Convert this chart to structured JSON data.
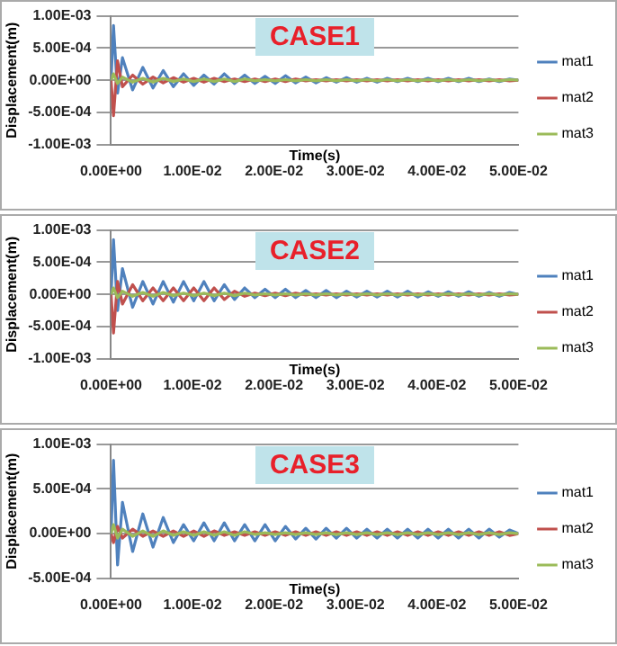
{
  "chart_data": [
    {
      "type": "line",
      "title": "CASE1",
      "xlabel": "Time(s)",
      "ylabel": "Displacement(m)",
      "x": [
        0,
        0.0003,
        0.0008,
        0.0014,
        0.00265,
        0.0039,
        0.00515,
        0.0064,
        0.00765,
        0.0089,
        0.01015,
        0.0114,
        0.01265,
        0.0139,
        0.01515,
        0.0164,
        0.01765,
        0.0189,
        0.02015,
        0.0214,
        0.02265,
        0.0239,
        0.02515,
        0.0264,
        0.02765,
        0.0289,
        0.03015,
        0.0314,
        0.03265,
        0.0339,
        0.03515,
        0.0364,
        0.03765,
        0.0389,
        0.04015,
        0.0414,
        0.04265,
        0.0439,
        0.04515,
        0.0464,
        0.04765,
        0.0489,
        0.05
      ],
      "series": [
        {
          "name": "mat1",
          "color": "#4f81bd",
          "values": [
            0,
            0.00085,
            -0.0002,
            0.00035,
            -0.00015,
            0.0002,
            -0.00012,
            0.00015,
            -0.0001,
            0.0001,
            -8e-05,
            8e-05,
            -6e-05,
            0.0001,
            -5e-05,
            8e-05,
            -5e-05,
            6e-05,
            -5e-05,
            7e-05,
            -4e-05,
            5e-05,
            -4e-05,
            4e-05,
            -3e-05,
            4e-05,
            -3e-05,
            3e-05,
            -3e-05,
            3e-05,
            -2e-05,
            3e-05,
            -2e-05,
            3e-05,
            -2e-05,
            3e-05,
            -2e-05,
            3e-05,
            -2e-05,
            2e-05,
            -2e-05,
            2e-05,
            0
          ]
        },
        {
          "name": "mat2",
          "color": "#c0504d",
          "values": [
            0,
            -0.00055,
            0.0003,
            -0.0001,
            8e-05,
            -6e-05,
            5e-05,
            -4e-05,
            4e-05,
            -3e-05,
            3e-05,
            -3e-05,
            3e-05,
            -2e-05,
            2e-05,
            -2e-05,
            2e-05,
            -2e-05,
            2e-05,
            -2e-05,
            2e-05,
            -1e-05,
            1e-05,
            -1e-05,
            1e-05,
            -1e-05,
            1e-05,
            -1e-05,
            1e-05,
            -1e-05,
            1e-05,
            -1e-05,
            1e-05,
            -1e-05,
            1e-05,
            -1e-05,
            1e-05,
            -1e-05,
            1e-05,
            -1e-05,
            1e-05,
            -1e-05,
            0
          ]
        },
        {
          "name": "mat3",
          "color": "#9bbb59",
          "values": [
            0,
            0.0001,
            -5e-05,
            5e-05,
            -3e-05,
            3e-05,
            -3e-05,
            3e-05,
            -2e-05,
            2e-05,
            -2e-05,
            2e-05,
            -2e-05,
            2e-05,
            -2e-05,
            2e-05,
            -1e-05,
            1e-05,
            -1e-05,
            1e-05,
            -1e-05,
            1e-05,
            -1e-05,
            1e-05,
            -1e-05,
            1e-05,
            -1e-05,
            1e-05,
            -1e-05,
            1e-05,
            -1e-05,
            1e-05,
            -1e-05,
            1e-05,
            -1e-05,
            1e-05,
            -1e-05,
            1e-05,
            -1e-05,
            1e-05,
            -1e-05,
            1e-05,
            0
          ]
        }
      ],
      "xlim": [
        0,
        0.05
      ],
      "xticks": [
        {
          "value": 0,
          "label": "0.00E+00"
        },
        {
          "value": 0.01,
          "label": "1.00E-02"
        },
        {
          "value": 0.02,
          "label": "2.00E-02"
        },
        {
          "value": 0.03,
          "label": "3.00E-02"
        },
        {
          "value": 0.04,
          "label": "4.00E-02"
        },
        {
          "value": 0.05,
          "label": "5.00E-02"
        }
      ],
      "ylim": [
        -0.001,
        0.001
      ],
      "yticks": [
        {
          "value": -0.001,
          "label": "-1.00E-03"
        },
        {
          "value": -0.0005,
          "label": "-5.00E-04"
        },
        {
          "value": 0,
          "label": "0.00E+00"
        },
        {
          "value": 0.0005,
          "label": "5.00E-04"
        },
        {
          "value": 0.001,
          "label": "1.00E-03"
        }
      ],
      "grid": "y",
      "legend": "right",
      "marker": "none"
    },
    {
      "type": "line",
      "title": "CASE2",
      "xlabel": "Time(s)",
      "ylabel": "Displacement(m)",
      "x": [
        0,
        0.0003,
        0.0008,
        0.0014,
        0.00265,
        0.0039,
        0.00515,
        0.0064,
        0.00765,
        0.0089,
        0.01015,
        0.0114,
        0.01265,
        0.0139,
        0.01515,
        0.0164,
        0.01765,
        0.0189,
        0.02015,
        0.0214,
        0.02265,
        0.0239,
        0.02515,
        0.0264,
        0.02765,
        0.0289,
        0.03015,
        0.0314,
        0.03265,
        0.0339,
        0.03515,
        0.0364,
        0.03765,
        0.0389,
        0.04015,
        0.0414,
        0.04265,
        0.0439,
        0.04515,
        0.0464,
        0.04765,
        0.0489,
        0.05
      ],
      "series": [
        {
          "name": "mat1",
          "color": "#4f81bd",
          "values": [
            0,
            0.00085,
            -0.00025,
            0.0004,
            -0.0002,
            0.0002,
            -0.00015,
            0.0002,
            -0.00012,
            0.0002,
            -0.0001,
            0.0002,
            -0.0001,
            0.00015,
            -8e-05,
            0.0001,
            -5e-05,
            8e-05,
            -5e-05,
            8e-05,
            -5e-05,
            6e-05,
            -5e-05,
            6e-05,
            -5e-05,
            5e-05,
            -4e-05,
            5e-05,
            -4e-05,
            5e-05,
            -4e-05,
            5e-05,
            -4e-05,
            4e-05,
            -3e-05,
            4e-05,
            -3e-05,
            4e-05,
            -3e-05,
            3e-05,
            -3e-05,
            3e-05,
            0
          ]
        },
        {
          "name": "mat2",
          "color": "#c0504d",
          "values": [
            0,
            -0.0006,
            0.0002,
            -0.00015,
            0.00015,
            -0.0001,
            0.0001,
            -0.0001,
            0.0001,
            -0.0001,
            0.0001,
            -0.0001,
            0.0001,
            -8e-05,
            5e-05,
            -3e-05,
            2e-05,
            -2e-05,
            2e-05,
            -2e-05,
            2e-05,
            -1e-05,
            1e-05,
            -1e-05,
            1e-05,
            -1e-05,
            1e-05,
            -1e-05,
            1e-05,
            -1e-05,
            1e-05,
            -1e-05,
            1e-05,
            -1e-05,
            1e-05,
            -1e-05,
            1e-05,
            -1e-05,
            1e-05,
            -1e-05,
            1e-05,
            -1e-05,
            0
          ]
        },
        {
          "name": "mat3",
          "color": "#9bbb59",
          "values": [
            0,
            0.0001,
            -5e-05,
            5e-05,
            -3e-05,
            3e-05,
            -3e-05,
            3e-05,
            -2e-05,
            2e-05,
            -2e-05,
            2e-05,
            -2e-05,
            2e-05,
            -2e-05,
            2e-05,
            -1e-05,
            1e-05,
            -1e-05,
            1e-05,
            -1e-05,
            1e-05,
            -1e-05,
            1e-05,
            -1e-05,
            1e-05,
            -1e-05,
            1e-05,
            -1e-05,
            1e-05,
            -1e-05,
            1e-05,
            -1e-05,
            1e-05,
            -1e-05,
            1e-05,
            -1e-05,
            1e-05,
            -1e-05,
            1e-05,
            -1e-05,
            1e-05,
            0
          ]
        }
      ],
      "xlim": [
        0,
        0.05
      ],
      "xticks": [
        {
          "value": 0,
          "label": "0.00E+00"
        },
        {
          "value": 0.01,
          "label": "1.00E-02"
        },
        {
          "value": 0.02,
          "label": "2.00E-02"
        },
        {
          "value": 0.03,
          "label": "3.00E-02"
        },
        {
          "value": 0.04,
          "label": "4.00E-02"
        },
        {
          "value": 0.05,
          "label": "5.00E-02"
        }
      ],
      "ylim": [
        -0.001,
        0.001
      ],
      "yticks": [
        {
          "value": -0.001,
          "label": "-1.00E-03"
        },
        {
          "value": -0.0005,
          "label": "-5.00E-04"
        },
        {
          "value": 0,
          "label": "0.00E+00"
        },
        {
          "value": 0.0005,
          "label": "5.00E-04"
        },
        {
          "value": 0.001,
          "label": "1.00E-03"
        }
      ],
      "grid": "y",
      "legend": "right",
      "marker": "none"
    },
    {
      "type": "line",
      "title": "CASE3",
      "xlabel": "Time(s)",
      "ylabel": "Displacement(m)",
      "x": [
        0,
        0.0003,
        0.0008,
        0.0014,
        0.00265,
        0.0039,
        0.00515,
        0.0064,
        0.00765,
        0.0089,
        0.01015,
        0.0114,
        0.01265,
        0.0139,
        0.01515,
        0.0164,
        0.01765,
        0.0189,
        0.02015,
        0.0214,
        0.02265,
        0.0239,
        0.02515,
        0.0264,
        0.02765,
        0.0289,
        0.03015,
        0.0314,
        0.03265,
        0.0339,
        0.03515,
        0.0364,
        0.03765,
        0.0389,
        0.04015,
        0.0414,
        0.04265,
        0.0439,
        0.04515,
        0.0464,
        0.04765,
        0.0489,
        0.05
      ],
      "series": [
        {
          "name": "mat1",
          "color": "#4f81bd",
          "values": [
            0,
            0.00082,
            -0.00035,
            0.00035,
            -0.0002,
            0.00022,
            -0.00015,
            0.00018,
            -0.0001,
            0.0001,
            -8e-05,
            0.00012,
            -8e-05,
            0.00012,
            -8e-05,
            0.0001,
            -8e-05,
            0.0001,
            -8e-05,
            8e-05,
            -6e-05,
            6e-05,
            -6e-05,
            6e-05,
            -5e-05,
            6e-05,
            -5e-05,
            5e-05,
            -5e-05,
            5e-05,
            -5e-05,
            5e-05,
            -5e-05,
            5e-05,
            -5e-05,
            5e-05,
            -5e-05,
            5e-05,
            -5e-05,
            5e-05,
            -4e-05,
            4e-05,
            0
          ]
        },
        {
          "name": "mat2",
          "color": "#c0504d",
          "values": [
            0,
            -0.0001,
            8e-05,
            -5e-05,
            5e-05,
            -3e-05,
            3e-05,
            -3e-05,
            3e-05,
            -3e-05,
            3e-05,
            -3e-05,
            3e-05,
            -2e-05,
            2e-05,
            -2e-05,
            2e-05,
            -2e-05,
            2e-05,
            -2e-05,
            2e-05,
            -2e-05,
            2e-05,
            -2e-05,
            2e-05,
            -2e-05,
            2e-05,
            -2e-05,
            2e-05,
            -2e-05,
            2e-05,
            -2e-05,
            2e-05,
            -2e-05,
            2e-05,
            -2e-05,
            2e-05,
            -2e-05,
            2e-05,
            -2e-05,
            2e-05,
            -2e-05,
            0
          ]
        },
        {
          "name": "mat3",
          "color": "#9bbb59",
          "values": [
            0,
            0.0001,
            -5e-05,
            5e-05,
            -3e-05,
            3e-05,
            -3e-05,
            3e-05,
            -2e-05,
            2e-05,
            -2e-05,
            2e-05,
            -2e-05,
            2e-05,
            -2e-05,
            2e-05,
            -1e-05,
            1e-05,
            -1e-05,
            1e-05,
            -1e-05,
            1e-05,
            -1e-05,
            1e-05,
            -1e-05,
            1e-05,
            -1e-05,
            1e-05,
            -1e-05,
            1e-05,
            -1e-05,
            1e-05,
            -1e-05,
            1e-05,
            -1e-05,
            1e-05,
            -1e-05,
            1e-05,
            -1e-05,
            1e-05,
            -1e-05,
            1e-05,
            0
          ]
        }
      ],
      "xlim": [
        0,
        0.05
      ],
      "xticks": [
        {
          "value": 0,
          "label": "0.00E+00"
        },
        {
          "value": 0.01,
          "label": "1.00E-02"
        },
        {
          "value": 0.02,
          "label": "2.00E-02"
        },
        {
          "value": 0.03,
          "label": "3.00E-02"
        },
        {
          "value": 0.04,
          "label": "4.00E-02"
        },
        {
          "value": 0.05,
          "label": "5.00E-02"
        }
      ],
      "ylim": [
        -0.0005,
        0.001
      ],
      "yticks": [
        {
          "value": -0.0005,
          "label": "-5.00E-04"
        },
        {
          "value": 0,
          "label": "0.00E+00"
        },
        {
          "value": 0.0005,
          "label": "5.00E-04"
        },
        {
          "value": 0.001,
          "label": "1.00E-03"
        }
      ],
      "grid": "y",
      "legend": "right",
      "marker": "none"
    }
  ]
}
